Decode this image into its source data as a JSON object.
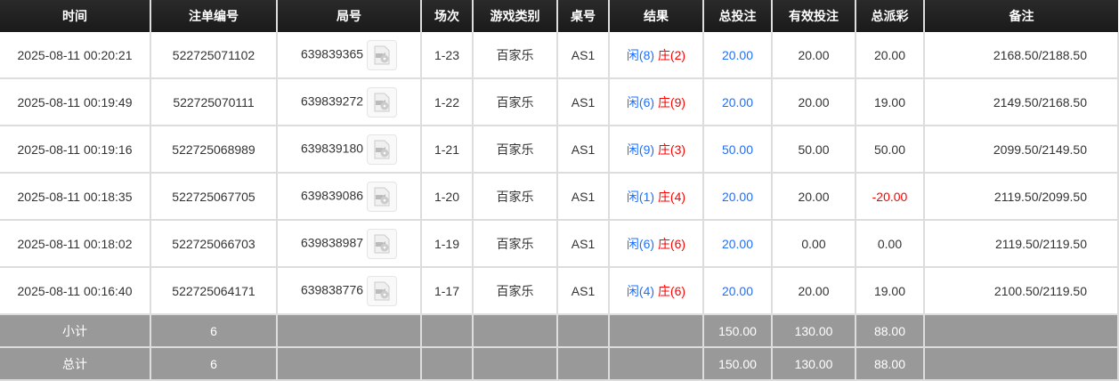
{
  "headers": [
    "时间",
    "注单编号",
    "局号",
    "场次",
    "游戏类别",
    "桌号",
    "结果",
    "总投注",
    "有效投注",
    "总派彩",
    "备注"
  ],
  "rows": [
    {
      "time": "2025-08-11 00:20:21",
      "bet_no": "522725071102",
      "round_no": "639839365",
      "session": "1-23",
      "game": "百家乐",
      "table": "AS1",
      "player": "闲(8)",
      "banker": "庄(2)",
      "total_bet": "20.00",
      "valid_bet": "20.00",
      "payout": "20.00",
      "remark": "2168.50/2188.50"
    },
    {
      "time": "2025-08-11 00:19:49",
      "bet_no": "522725070111",
      "round_no": "639839272",
      "session": "1-22",
      "game": "百家乐",
      "table": "AS1",
      "player": "闲(6)",
      "banker": "庄(9)",
      "total_bet": "20.00",
      "valid_bet": "20.00",
      "payout": "19.00",
      "remark": "2149.50/2168.50"
    },
    {
      "time": "2025-08-11 00:19:16",
      "bet_no": "522725068989",
      "round_no": "639839180",
      "session": "1-21",
      "game": "百家乐",
      "table": "AS1",
      "player": "闲(9)",
      "banker": "庄(3)",
      "total_bet": "50.00",
      "valid_bet": "50.00",
      "payout": "50.00",
      "remark": "2099.50/2149.50"
    },
    {
      "time": "2025-08-11 00:18:35",
      "bet_no": "522725067705",
      "round_no": "639839086",
      "session": "1-20",
      "game": "百家乐",
      "table": "AS1",
      "player": "闲(1)",
      "banker": "庄(4)",
      "total_bet": "20.00",
      "valid_bet": "20.00",
      "payout": "-20.00",
      "payout_negative": true,
      "remark": "2119.50/2099.50"
    },
    {
      "time": "2025-08-11 00:18:02",
      "bet_no": "522725066703",
      "round_no": "639838987",
      "session": "1-19",
      "game": "百家乐",
      "table": "AS1",
      "player": "闲(6)",
      "banker": "庄(6)",
      "total_bet": "20.00",
      "valid_bet": "0.00",
      "payout": "0.00",
      "remark": "2119.50/2119.50"
    },
    {
      "time": "2025-08-11 00:16:40",
      "bet_no": "522725064171",
      "round_no": "639838776",
      "session": "1-17",
      "game": "百家乐",
      "table": "AS1",
      "player": "闲(4)",
      "banker": "庄(6)",
      "total_bet": "20.00",
      "valid_bet": "20.00",
      "payout": "19.00",
      "remark": "2100.50/2119.50"
    }
  ],
  "subtotal": {
    "label": "小计",
    "count": "6",
    "total_bet": "150.00",
    "valid_bet": "130.00",
    "payout": "88.00"
  },
  "total": {
    "label": "总计",
    "count": "6",
    "total_bet": "150.00",
    "valid_bet": "130.00",
    "payout": "88.00"
  },
  "icons": {
    "replay": "video-replay-icon"
  },
  "colors": {
    "player": "#1e6fff",
    "banker": "#ff0000",
    "negative": "#ff0000",
    "total_bet": "#1e6fff"
  }
}
